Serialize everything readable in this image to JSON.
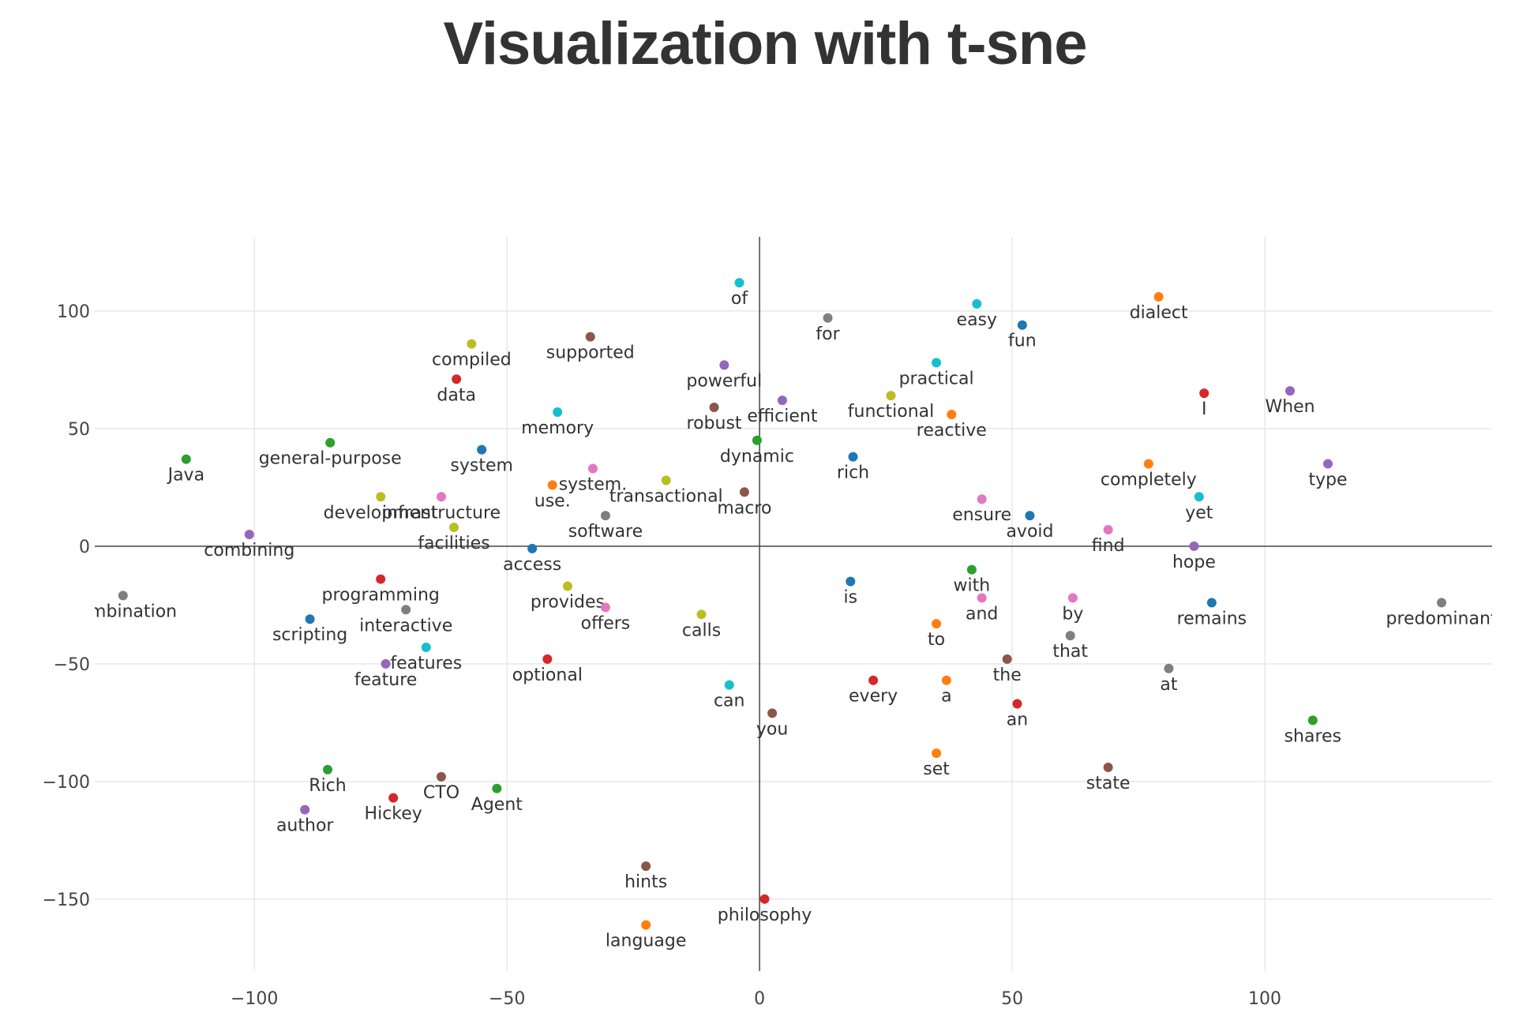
{
  "chart_data": {
    "type": "scatter",
    "title": "Visualization with t-sne",
    "xlabel": "",
    "ylabel": "",
    "xlim": [
      -131.6,
      145
    ],
    "ylim": [
      -180.6,
      131.5
    ],
    "x_ticks": [
      -100,
      -50,
      0,
      50,
      100
    ],
    "y_ticks": [
      100,
      50,
      0,
      -50,
      -100,
      -150
    ],
    "x_tick_labels": [
      "−100",
      "−50",
      "0",
      "50",
      "100"
    ],
    "y_tick_labels": [
      "100",
      "50",
      "0",
      "−50",
      "−100",
      "−150"
    ],
    "grid": true,
    "zero_lines": true,
    "points": [
      {
        "label": "of",
        "x": -4,
        "y": 112,
        "color": "#17becf"
      },
      {
        "label": "for",
        "x": 13.5,
        "y": 97,
        "color": "#7f7f7f"
      },
      {
        "label": "easy",
        "x": 43,
        "y": 103,
        "color": "#17becf"
      },
      {
        "label": "fun",
        "x": 52,
        "y": 94,
        "color": "#1f77b4"
      },
      {
        "label": "dialect",
        "x": 79,
        "y": 106,
        "color": "#ff7f0e"
      },
      {
        "label": "compiled",
        "x": -57,
        "y": 86,
        "color": "#bcbd22"
      },
      {
        "label": "supported",
        "x": -33.5,
        "y": 89,
        "color": "#8c564b"
      },
      {
        "label": "data",
        "x": -60,
        "y": 71,
        "color": "#d62728"
      },
      {
        "label": "powerful",
        "x": -7,
        "y": 77,
        "color": "#9467bd"
      },
      {
        "label": "practical",
        "x": 35,
        "y": 78,
        "color": "#17becf"
      },
      {
        "label": "I",
        "x": 88,
        "y": 65,
        "color": "#d62728"
      },
      {
        "label": "When",
        "x": 105,
        "y": 66,
        "color": "#9467bd"
      },
      {
        "label": "functional",
        "x": 26,
        "y": 64,
        "color": "#bcbd22"
      },
      {
        "label": "robust",
        "x": -9,
        "y": 59,
        "color": "#8c564b"
      },
      {
        "label": "efficient",
        "x": 4.5,
        "y": 62,
        "color": "#9467bd"
      },
      {
        "label": "memory",
        "x": -40,
        "y": 57,
        "color": "#17becf"
      },
      {
        "label": "reactive",
        "x": 38,
        "y": 56,
        "color": "#ff7f0e"
      },
      {
        "label": "Java",
        "x": -113.5,
        "y": 37,
        "color": "#2ca02c"
      },
      {
        "label": "general-purpose",
        "x": -85,
        "y": 44,
        "color": "#2ca02c"
      },
      {
        "label": "system",
        "x": -55,
        "y": 41,
        "color": "#1f77b4"
      },
      {
        "label": "dynamic",
        "x": -0.5,
        "y": 45,
        "color": "#2ca02c"
      },
      {
        "label": "rich",
        "x": 18.5,
        "y": 38,
        "color": "#1f77b4"
      },
      {
        "label": "completely",
        "x": 77,
        "y": 35,
        "color": "#ff7f0e"
      },
      {
        "label": "type",
        "x": 112.5,
        "y": 35,
        "color": "#9467bd"
      },
      {
        "label": "use.",
        "x": -41,
        "y": 26,
        "color": "#ff7f0e"
      },
      {
        "label": "system.",
        "x": -33,
        "y": 33,
        "color": "#e377c2"
      },
      {
        "label": "transactional",
        "x": -18.5,
        "y": 28,
        "color": "#bcbd22"
      },
      {
        "label": "macro",
        "x": -3,
        "y": 23,
        "color": "#8c564b"
      },
      {
        "label": "development",
        "x": -75,
        "y": 21,
        "color": "#bcbd22"
      },
      {
        "label": "infrastructure",
        "x": -63,
        "y": 21,
        "color": "#e377c2"
      },
      {
        "label": "ensure",
        "x": 44,
        "y": 20,
        "color": "#e377c2"
      },
      {
        "label": "yet",
        "x": 87,
        "y": 21,
        "color": "#17becf"
      },
      {
        "label": "software",
        "x": -30.5,
        "y": 13,
        "color": "#7f7f7f"
      },
      {
        "label": "avoid",
        "x": 53.5,
        "y": 13,
        "color": "#1f77b4"
      },
      {
        "label": "facilities",
        "x": -60.5,
        "y": 8,
        "color": "#bcbd22"
      },
      {
        "label": "find",
        "x": 69,
        "y": 7,
        "color": "#e377c2"
      },
      {
        "label": "combining",
        "x": -101,
        "y": 5,
        "color": "#9467bd"
      },
      {
        "label": "access",
        "x": -45,
        "y": -1,
        "color": "#1f77b4"
      },
      {
        "label": "hope",
        "x": 86,
        "y": 0,
        "color": "#9467bd"
      },
      {
        "label": "combination",
        "x": -126,
        "y": -21,
        "color": "#7f7f7f"
      },
      {
        "label": "programming",
        "x": -75,
        "y": -14,
        "color": "#d62728"
      },
      {
        "label": "is",
        "x": 18,
        "y": -15,
        "color": "#1f77b4"
      },
      {
        "label": "with",
        "x": 42,
        "y": -10,
        "color": "#2ca02c"
      },
      {
        "label": "provides",
        "x": -38,
        "y": -17,
        "color": "#bcbd22"
      },
      {
        "label": "offers",
        "x": -30.5,
        "y": -26,
        "color": "#e377c2"
      },
      {
        "label": "and",
        "x": 44,
        "y": -22,
        "color": "#e377c2"
      },
      {
        "label": "by",
        "x": 62,
        "y": -22,
        "color": "#e377c2"
      },
      {
        "label": "remains",
        "x": 89.5,
        "y": -24,
        "color": "#1f77b4"
      },
      {
        "label": "predominant",
        "x": 135,
        "y": -24,
        "color": "#7f7f7f"
      },
      {
        "label": "interactive",
        "x": -70,
        "y": -27,
        "color": "#7f7f7f"
      },
      {
        "label": "scripting",
        "x": -89,
        "y": -31,
        "color": "#1f77b4"
      },
      {
        "label": "calls",
        "x": -11.5,
        "y": -29,
        "color": "#bcbd22"
      },
      {
        "label": "to",
        "x": 35,
        "y": -33,
        "color": "#ff7f0e"
      },
      {
        "label": "that",
        "x": 61.5,
        "y": -38,
        "color": "#7f7f7f"
      },
      {
        "label": "features",
        "x": -66,
        "y": -43,
        "color": "#17becf"
      },
      {
        "label": "feature",
        "x": -74,
        "y": -50,
        "color": "#9467bd"
      },
      {
        "label": "optional",
        "x": -42,
        "y": -48,
        "color": "#d62728"
      },
      {
        "label": "the",
        "x": 49,
        "y": -48,
        "color": "#8c564b"
      },
      {
        "label": "at",
        "x": 81,
        "y": -52,
        "color": "#7f7f7f"
      },
      {
        "label": "can",
        "x": -6,
        "y": -59,
        "color": "#17becf"
      },
      {
        "label": "every",
        "x": 22.5,
        "y": -57,
        "color": "#d62728"
      },
      {
        "label": "a",
        "x": 37,
        "y": -57,
        "color": "#ff7f0e"
      },
      {
        "label": "an",
        "x": 51,
        "y": -67,
        "color": "#d62728"
      },
      {
        "label": "you",
        "x": 2.5,
        "y": -71,
        "color": "#8c564b"
      },
      {
        "label": "shares",
        "x": 109.5,
        "y": -74,
        "color": "#2ca02c"
      },
      {
        "label": "set",
        "x": 35,
        "y": -88,
        "color": "#ff7f0e"
      },
      {
        "label": "state",
        "x": 69,
        "y": -94,
        "color": "#8c564b"
      },
      {
        "label": "Rich",
        "x": -85.5,
        "y": -95,
        "color": "#2ca02c"
      },
      {
        "label": "CTO",
        "x": -63,
        "y": -98,
        "color": "#8c564b"
      },
      {
        "label": "Agent",
        "x": -52,
        "y": -103,
        "color": "#2ca02c"
      },
      {
        "label": "Hickey",
        "x": -72.5,
        "y": -107,
        "color": "#d62728"
      },
      {
        "label": "author",
        "x": -90,
        "y": -112,
        "color": "#9467bd"
      },
      {
        "label": "hints",
        "x": -22.5,
        "y": -136,
        "color": "#8c564b"
      },
      {
        "label": "philosophy",
        "x": 1,
        "y": -150,
        "color": "#d62728"
      },
      {
        "label": "language",
        "x": -22.5,
        "y": -161,
        "color": "#ff7f0e"
      }
    ]
  }
}
